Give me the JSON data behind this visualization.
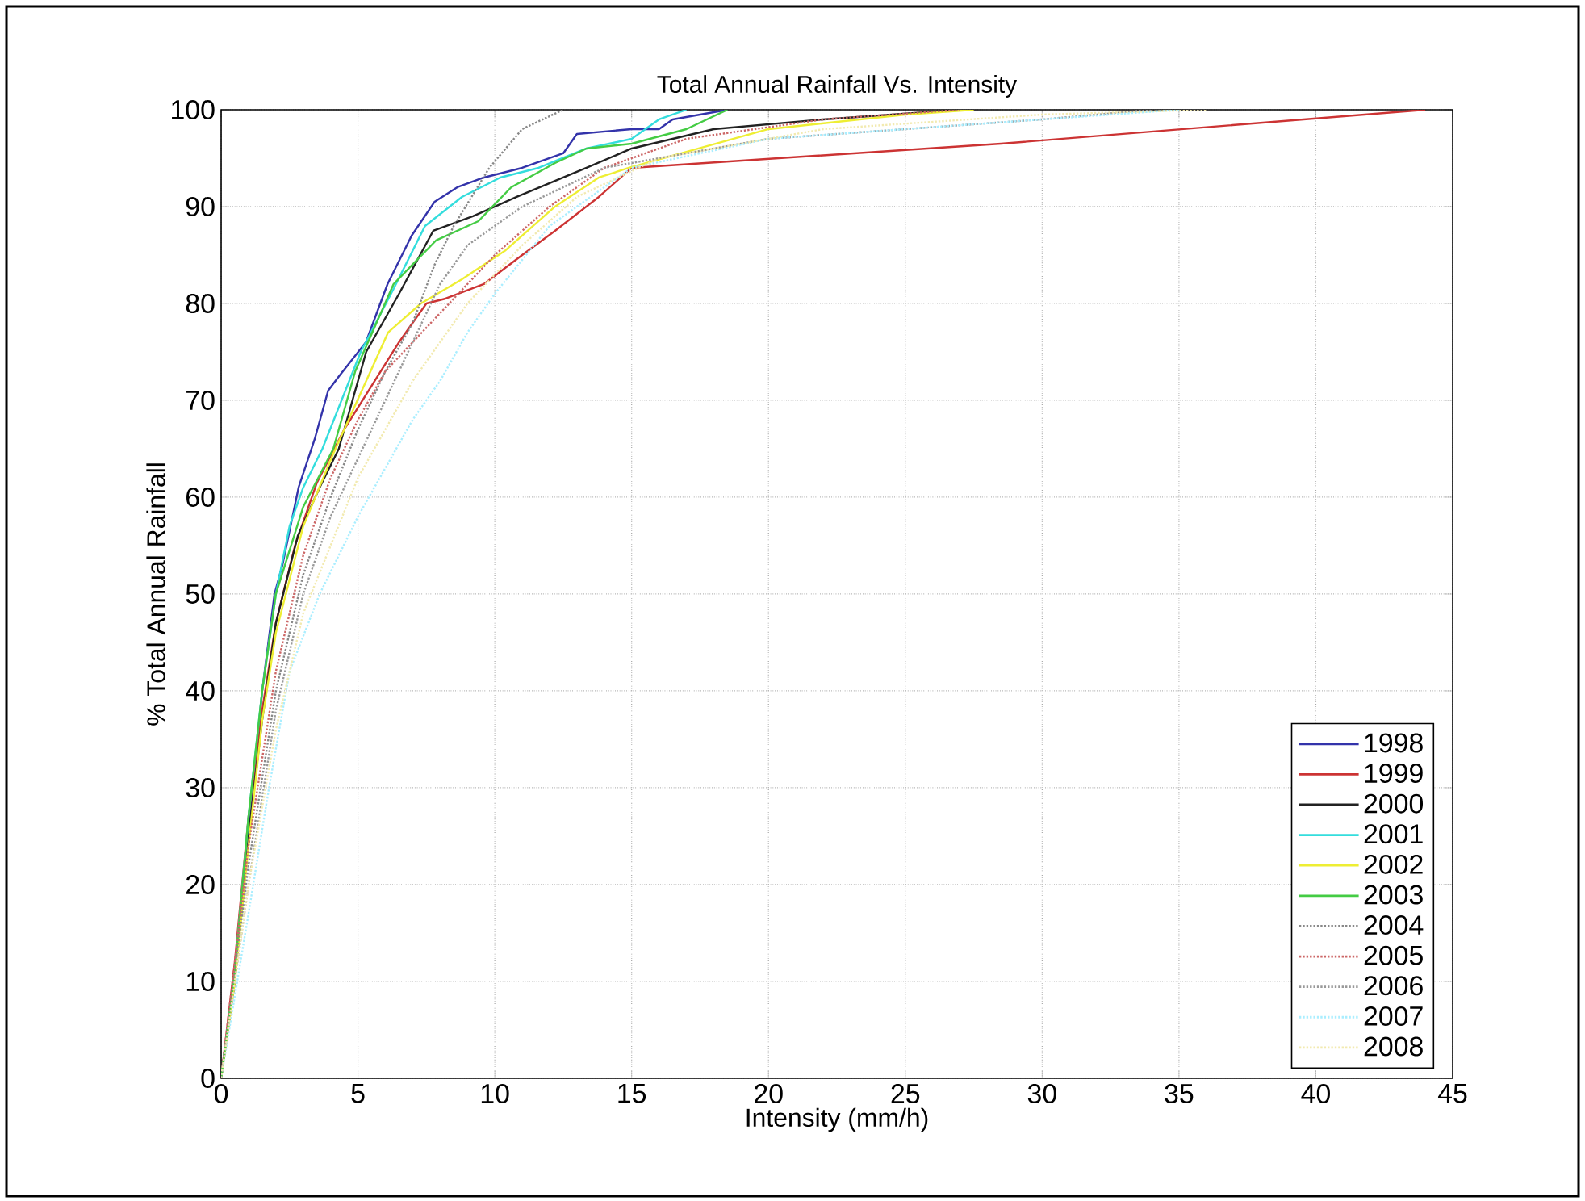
{
  "chart_data": {
    "type": "line",
    "title": "Total Annual Rainfall Vs. Intensity",
    "xlabel": "Intensity (mm/h)",
    "ylabel": "% Total Annual Rainfall",
    "xlim": [
      0,
      45
    ],
    "ylim": [
      0,
      100
    ],
    "xticks": [
      0,
      5,
      10,
      15,
      20,
      25,
      30,
      35,
      40,
      45
    ],
    "yticks": [
      0,
      10,
      20,
      30,
      40,
      50,
      60,
      70,
      80,
      90,
      100
    ],
    "grid": true,
    "legend": "bottom right",
    "series": [
      {
        "name": "1998",
        "color": "#3333aa",
        "line_style": "solid",
        "x": [
          1,
          1.5,
          1.95,
          2.24,
          2.83,
          3.42,
          3.91,
          4.31,
          5.29,
          6.08,
          6.96,
          7.8,
          8.63,
          9.6,
          11,
          12.5,
          13,
          15,
          16,
          16.5,
          18.5
        ],
        "values": [
          25,
          40,
          50,
          53,
          61,
          66,
          71,
          72.5,
          76,
          82,
          87,
          90.5,
          92,
          93,
          94,
          95.5,
          97.5,
          98,
          98,
          99,
          100
        ]
      },
      {
        "name": "1999",
        "color": "#cc3333",
        "line_style": "solid",
        "x": [
          0,
          0.5,
          1,
          1.5,
          2,
          2.7,
          3.5,
          4.5,
          5.5,
          6.5,
          7.5,
          8.2,
          9.6,
          11,
          12.2,
          13.8,
          15,
          28.5,
          44
        ],
        "values": [
          0,
          12,
          27,
          38,
          47,
          55,
          61.5,
          67,
          71.5,
          76,
          80,
          80.5,
          82,
          85,
          87.5,
          91,
          94,
          96.5,
          100
        ]
      },
      {
        "name": "2000",
        "color": "#222222",
        "line_style": "solid",
        "x": [
          0,
          0.5,
          1,
          1.5,
          2,
          2.8,
          3.6,
          4.3,
          5.3,
          6.5,
          7.75,
          9.2,
          10.8,
          13.35,
          15,
          18,
          22,
          27
        ],
        "values": [
          0,
          10,
          25,
          37,
          47,
          56,
          61,
          65,
          75,
          81,
          87.5,
          89,
          91,
          94,
          96,
          98,
          99,
          100
        ]
      },
      {
        "name": "2001",
        "color": "#33dddd",
        "line_style": "solid",
        "x": [
          0,
          0.5,
          1,
          1.5,
          2,
          2.5,
          3,
          3.7,
          5.1,
          6.3,
          7.45,
          8.8,
          10.2,
          11.6,
          13.35,
          15,
          16,
          17
        ],
        "values": [
          0,
          11,
          27,
          40,
          50,
          57,
          61,
          65,
          75,
          81.5,
          88,
          91,
          93,
          94,
          96,
          97,
          99,
          100
        ]
      },
      {
        "name": "2002",
        "color": "#eeee33",
        "line_style": "solid",
        "x": [
          0,
          0.5,
          1,
          1.5,
          2,
          3,
          4.1,
          6.1,
          7.3,
          8.8,
          10.4,
          12.2,
          13.8,
          14.9,
          20,
          25,
          27.5
        ],
        "values": [
          0,
          10,
          24,
          37,
          46,
          57,
          64.5,
          77,
          80,
          82.5,
          85.5,
          90,
          93,
          94,
          98,
          99.5,
          100
        ]
      },
      {
        "name": "2003",
        "color": "#44cc44",
        "line_style": "solid",
        "x": [
          0,
          0.5,
          1,
          1.5,
          2,
          3,
          4.1,
          4.9,
          6.3,
          7.85,
          9.4,
          10.6,
          12.2,
          13.35,
          15,
          17,
          18.5
        ],
        "values": [
          0,
          11,
          27,
          40,
          50,
          59,
          65,
          73,
          82,
          86.5,
          88.5,
          92,
          94.5,
          96,
          96.5,
          98,
          100
        ]
      },
      {
        "name": "2004",
        "color": "#888888",
        "line_style": "dotted",
        "x": [
          0,
          1,
          2,
          3,
          4,
          5,
          6,
          7,
          7.8,
          8.5,
          9.8,
          11,
          12.5
        ],
        "values": [
          0,
          22,
          40,
          52,
          60,
          67,
          73,
          78,
          84,
          88,
          94,
          98,
          100
        ]
      },
      {
        "name": "2005",
        "color": "#cc6666",
        "line_style": "dotted",
        "x": [
          0,
          1,
          2,
          3,
          4,
          5,
          6,
          8,
          10,
          12,
          14,
          17,
          22,
          27
        ],
        "values": [
          0,
          24,
          42,
          54,
          62,
          68,
          73,
          79,
          85,
          90,
          94,
          97,
          99,
          100
        ]
      },
      {
        "name": "2006",
        "color": "#999999",
        "line_style": "dotted",
        "x": [
          0,
          1,
          2,
          3,
          4,
          5,
          6,
          7,
          8,
          9,
          11,
          14,
          20,
          30,
          34
        ],
        "values": [
          0,
          20,
          38,
          50,
          58,
          64,
          70,
          76,
          82,
          86,
          90,
          94,
          97,
          99,
          100
        ]
      },
      {
        "name": "2007",
        "color": "#aaeeff",
        "line_style": "dotted",
        "x": [
          0,
          1,
          1.75,
          2.5,
          3.6,
          5,
          6,
          7,
          8,
          9,
          10,
          12,
          15,
          20,
          30,
          35
        ],
        "values": [
          0,
          17,
          30,
          42,
          50,
          58,
          63,
          68,
          72,
          77,
          81,
          88,
          94,
          97,
          99,
          100
        ]
      },
      {
        "name": "2008",
        "color": "#f2eab0",
        "line_style": "dotted",
        "x": [
          0,
          1,
          2,
          3,
          5,
          7,
          9,
          11,
          13,
          16,
          22,
          30,
          36
        ],
        "values": [
          0,
          20,
          36,
          48,
          62,
          72,
          80,
          86,
          91,
          95,
          98,
          99.5,
          100
        ]
      }
    ]
  }
}
